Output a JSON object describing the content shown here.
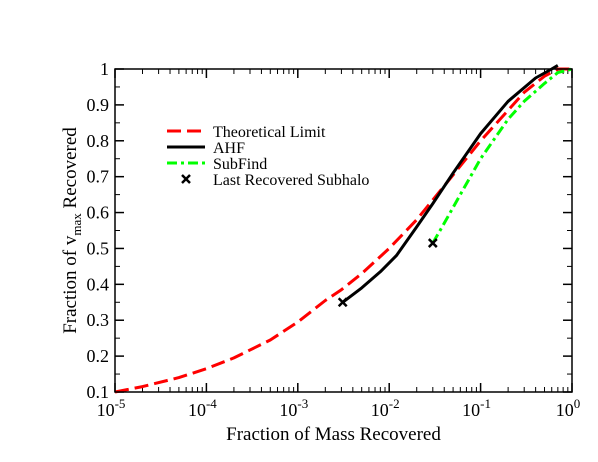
{
  "chart_data": {
    "type": "line",
    "title": "",
    "xlabel": "Fraction of Mass Recovered",
    "ylabel": {
      "prefix": "Fraction of v",
      "subscript": "max",
      "suffix": " Recovered"
    },
    "xscale": "log",
    "xlim": [
      1e-05,
      1
    ],
    "ylim": [
      0.1,
      1.0
    ],
    "grid": false,
    "legend_position": "upper-left",
    "x_ticks": [
      {
        "value": 1e-05,
        "base": "10",
        "exp": "-5"
      },
      {
        "value": 0.0001,
        "base": "10",
        "exp": "-4"
      },
      {
        "value": 0.001,
        "base": "10",
        "exp": "-3"
      },
      {
        "value": 0.01,
        "base": "10",
        "exp": "-2"
      },
      {
        "value": 0.1,
        "base": "10",
        "exp": "-1"
      },
      {
        "value": 1,
        "base": "10",
        "exp": "0"
      }
    ],
    "y_ticks": [
      {
        "value": 0.1,
        "label": "0.1"
      },
      {
        "value": 0.2,
        "label": "0.2"
      },
      {
        "value": 0.3,
        "label": "0.3"
      },
      {
        "value": 0.4,
        "label": "0.4"
      },
      {
        "value": 0.5,
        "label": "0.5"
      },
      {
        "value": 0.6,
        "label": "0.6"
      },
      {
        "value": 0.7,
        "label": "0.7"
      },
      {
        "value": 0.8,
        "label": "0.8"
      },
      {
        "value": 0.9,
        "label": "0.9"
      },
      {
        "value": 1.0,
        "label": "1"
      }
    ],
    "series": [
      {
        "name": "Theoretical Limit",
        "color": "#ff0000",
        "style": "dashed",
        "x": [
          1e-05,
          2e-05,
          5e-05,
          0.0001,
          0.0002,
          0.0005,
          0.001,
          0.002,
          0.003,
          0.005,
          0.01,
          0.02,
          0.03,
          0.05,
          0.1,
          0.2,
          0.3,
          0.5,
          0.7,
          1.0
        ],
        "y": [
          0.1,
          0.115,
          0.14,
          0.165,
          0.195,
          0.245,
          0.295,
          0.355,
          0.385,
          0.43,
          0.5,
          0.58,
          0.635,
          0.705,
          0.8,
          0.885,
          0.935,
          0.98,
          1.0,
          1.0
        ]
      },
      {
        "name": "AHF",
        "color": "#000000",
        "style": "solid",
        "x": [
          0.0031,
          0.005,
          0.008,
          0.012,
          0.02,
          0.03,
          0.05,
          0.1,
          0.2,
          0.4,
          0.6,
          0.7
        ],
        "y": [
          0.35,
          0.39,
          0.435,
          0.48,
          0.56,
          0.625,
          0.71,
          0.82,
          0.91,
          0.975,
          1.0,
          1.01
        ]
      },
      {
        "name": "SubFind",
        "color": "#00ff00",
        "style": "dash-dot",
        "x": [
          0.03,
          0.04,
          0.06,
          0.1,
          0.2,
          0.3,
          0.5,
          0.7,
          1.0
        ],
        "y": [
          0.515,
          0.57,
          0.65,
          0.75,
          0.86,
          0.91,
          0.96,
          0.99,
          1.0
        ]
      }
    ],
    "markers": {
      "name": "Last Recovered Subhalo",
      "symbol": "x",
      "color": "#000000",
      "points": [
        {
          "x": 0.0031,
          "y": 0.35
        },
        {
          "x": 0.03,
          "y": 0.515
        }
      ]
    }
  }
}
